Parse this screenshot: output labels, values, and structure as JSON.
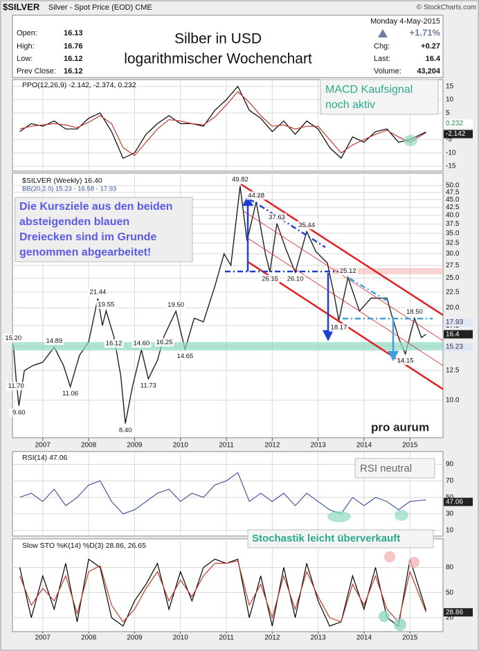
{
  "header": {
    "symbol": "$SILVER",
    "description": "Silver - Spot Price (EOD) CME",
    "copyright": "© StockCharts.com",
    "open_label": "Open:",
    "open": 16.13,
    "high_label": "High:",
    "high": 16.76,
    "low_label": "Low:",
    "low": 16.12,
    "prev_label": "Prev Close:",
    "prev": 16.12,
    "date": "Monday  4-May-2015",
    "change_pct": "+1.71%",
    "chg_label": "Chg:",
    "chg": "+0.27",
    "last_label": "Last:",
    "last": 16.4,
    "volume_label": "Volume:",
    "volume": "43,204",
    "title_line1": "Silber in USD",
    "title_line2": "logarithmischer Wochenchart"
  },
  "annotations": {
    "macd_line1": "MACD Kaufsignal",
    "macd_line2": "noch aktiv",
    "targets": [
      "Die Kursziele aus den beiden",
      "absteigenden blauen",
      "Dreiecken sind im Grunde",
      "genommen abgearbeitet!"
    ],
    "rsi": "RSI neutral",
    "sto": "Stochastik leicht überverkauft",
    "logo": "pro aurum"
  },
  "chart_data": [
    {
      "type": "line",
      "title": "$SILVER (Weekly) 16.40",
      "bollinger_label": "BB(20,2.0) 15.23 - 16.58 - 17.93",
      "bollinger_upper": "17.93",
      "bollinger_lower": "15.23",
      "log_scale": true,
      "grid": true,
      "x": [
        2006.36,
        2006.42,
        2006.48,
        2006.6,
        2006.8,
        2007.0,
        2007.25,
        2007.45,
        2007.6,
        2007.8,
        2008.0,
        2008.2,
        2008.3,
        2008.38,
        2008.55,
        2008.7,
        2008.8,
        2008.95,
        2009.15,
        2009.3,
        2009.5,
        2009.65,
        2009.9,
        2010.1,
        2010.3,
        2010.5,
        2010.75,
        2010.95,
        2011.1,
        2011.3,
        2011.45,
        2011.65,
        2011.85,
        2011.95,
        2012.1,
        2012.3,
        2012.5,
        2012.75,
        2012.95,
        2013.2,
        2013.35,
        2013.45,
        2013.65,
        2013.9,
        2014.15,
        2014.5,
        2014.6,
        2014.75,
        2014.9,
        2015.1,
        2015.25,
        2015.35
      ],
      "series": [
        {
          "color": "#202020",
          "values": [
            15.2,
            11.7,
            9.6,
            12.5,
            13.0,
            13.3,
            14.89,
            13.0,
            11.06,
            14.0,
            15.5,
            21.44,
            17.5,
            19.55,
            16.12,
            12.0,
            8.4,
            11.0,
            14.6,
            11.73,
            13.5,
            16.25,
            19.5,
            14.65,
            18.5,
            18.0,
            23.5,
            30.0,
            27.5,
            49.82,
            33.0,
            44.28,
            30.0,
            26.15,
            37.63,
            31.0,
            26.1,
            35.44,
            30.5,
            28.0,
            22.0,
            18.17,
            25.12,
            19.5,
            21.5,
            21.5,
            19.0,
            16.0,
            14.15,
            18.5,
            16.0,
            16.4
          ],
          "value_labels": [
            "15.20",
            "11.70",
            "9.60",
            null,
            null,
            null,
            "14.89",
            null,
            "11.06",
            null,
            null,
            "21.44",
            null,
            "19.55",
            "16.12",
            null,
            "8.40",
            null,
            "14.60",
            "11.73",
            null,
            "16.25",
            "19.50",
            "14.65",
            null,
            null,
            null,
            null,
            null,
            "49.82",
            null,
            "44.28",
            null,
            "26.15",
            "37.63",
            null,
            "26.10",
            "35.44",
            null,
            null,
            null,
            "18.17",
            "25.12",
            null,
            null,
            null,
            null,
            null,
            "14.15",
            "18.50",
            null,
            null
          ]
        }
      ],
      "xlim": [
        2006.34,
        2015.72
      ],
      "xticks": [
        2007,
        2008,
        2009,
        2010,
        2011,
        2012,
        2013,
        2014,
        2015
      ],
      "ylim": [
        7.55,
        53.5
      ],
      "yticks": [
        {
          "value": 10,
          "label": "10.0"
        },
        {
          "value": 12.5,
          "label": "12.5"
        },
        {
          "value": 15,
          "label": "15.0"
        },
        {
          "value": 17.5,
          "label": "17.5"
        },
        {
          "value": 20,
          "label": "20.0"
        },
        {
          "value": 22.5,
          "label": "22.5"
        },
        {
          "value": 25,
          "label": "25.0"
        },
        {
          "value": 27.5,
          "label": "27.5"
        },
        {
          "value": 30,
          "label": "30.0"
        },
        {
          "value": 32.5,
          "label": "32.5"
        },
        {
          "value": 35,
          "label": "35.0"
        },
        {
          "value": 37.5,
          "label": "37.5"
        },
        {
          "value": 40,
          "label": "40.0"
        },
        {
          "value": 42.5,
          "label": "42.5"
        },
        {
          "value": 45,
          "label": "45.0"
        },
        {
          "value": 47.5,
          "label": "47.5"
        },
        {
          "value": 50,
          "label": "50.0"
        }
      ]
    },
    {
      "type": "line",
      "title": "PPO(12,26,9) -2.142, -2.374, 0.232",
      "histogram": 0.232,
      "grid": true,
      "x": [
        2006.5,
        2006.75,
        2007.0,
        2007.25,
        2007.5,
        2007.75,
        2008.0,
        2008.25,
        2008.5,
        2008.75,
        2009.0,
        2009.25,
        2009.5,
        2009.75,
        2010.0,
        2010.25,
        2010.5,
        2010.75,
        2011.0,
        2011.25,
        2011.5,
        2011.75,
        2012.0,
        2012.25,
        2012.5,
        2012.75,
        2013.0,
        2013.25,
        2013.5,
        2013.75,
        2014.0,
        2014.25,
        2014.5,
        2014.75,
        2015.0,
        2015.35
      ],
      "series": [
        {
          "color": "#000000",
          "values": [
            -2,
            1,
            0,
            2,
            -1,
            -1,
            3,
            5,
            -2,
            -12,
            -10,
            -3,
            1,
            4,
            1,
            1,
            0,
            6,
            10,
            15,
            6,
            3,
            -2,
            2,
            -3,
            2,
            -1,
            -8,
            -12,
            -4,
            -6,
            -2,
            -1,
            -6,
            -5,
            -2.142
          ]
        },
        {
          "color": "#c0392b",
          "values": [
            -1,
            0,
            0.5,
            1,
            0.5,
            -0.5,
            1.5,
            4,
            1,
            -8,
            -11,
            -6,
            -1,
            2.5,
            2,
            1,
            0.5,
            3.5,
            8,
            13,
            9,
            4,
            0,
            0.5,
            -1,
            0,
            0,
            -5,
            -10,
            -7,
            -5,
            -3,
            -1.5,
            -4,
            -6,
            -2.374
          ]
        }
      ],
      "xlim": [
        2006.34,
        2015.72
      ],
      "ylim": [
        -16.3,
        17
      ],
      "yticks": [
        15,
        10,
        5,
        -5,
        -10,
        -15
      ]
    },
    {
      "type": "line",
      "title": "RSI(14) 47.06",
      "grid": true,
      "x": [
        2006.5,
        2006.75,
        2007.0,
        2007.25,
        2007.5,
        2007.75,
        2008.0,
        2008.25,
        2008.5,
        2008.75,
        2009.0,
        2009.25,
        2009.5,
        2009.75,
        2010.0,
        2010.25,
        2010.5,
        2010.75,
        2011.0,
        2011.25,
        2011.5,
        2011.75,
        2012.0,
        2012.25,
        2012.5,
        2012.75,
        2013.0,
        2013.25,
        2013.5,
        2013.75,
        2014.0,
        2014.25,
        2014.5,
        2014.75,
        2015.0,
        2015.35
      ],
      "series": [
        {
          "color": "#4a5a9a",
          "values": [
            50,
            55,
            45,
            60,
            40,
            50,
            65,
            70,
            45,
            30,
            35,
            45,
            55,
            60,
            45,
            55,
            50,
            65,
            70,
            80,
            45,
            55,
            45,
            55,
            40,
            55,
            45,
            35,
            30,
            50,
            40,
            50,
            45,
            35,
            45,
            47.06
          ]
        }
      ],
      "xlim": [
        2006.34,
        2015.72
      ],
      "ylim": [
        4,
        103
      ],
      "yticks": [
        10,
        30,
        50,
        70,
        90
      ]
    },
    {
      "type": "line",
      "title": "Slow STO %K(14) %D(3) 28.86, 26.65",
      "grid": true,
      "x": [
        2006.5,
        2006.75,
        2007.0,
        2007.25,
        2007.5,
        2007.75,
        2008.0,
        2008.25,
        2008.5,
        2008.75,
        2009.0,
        2009.25,
        2009.5,
        2009.75,
        2010.0,
        2010.25,
        2010.5,
        2010.75,
        2011.0,
        2011.25,
        2011.5,
        2011.75,
        2012.0,
        2012.25,
        2012.5,
        2012.75,
        2013.0,
        2013.25,
        2013.5,
        2013.75,
        2014.0,
        2014.25,
        2014.5,
        2014.75,
        2015.0,
        2015.35
      ],
      "series": [
        {
          "color": "#000000",
          "values": [
            80,
            20,
            70,
            30,
            85,
            15,
            90,
            80,
            20,
            10,
            40,
            60,
            85,
            30,
            75,
            40,
            80,
            90,
            85,
            90,
            20,
            70,
            10,
            80,
            20,
            85,
            40,
            10,
            15,
            70,
            30,
            80,
            20,
            10,
            90,
            28.86
          ]
        },
        {
          "color": "#c0392b",
          "values": [
            70,
            35,
            55,
            40,
            70,
            25,
            75,
            82,
            35,
            15,
            30,
            55,
            75,
            40,
            65,
            45,
            70,
            85,
            85,
            88,
            35,
            60,
            20,
            70,
            30,
            75,
            45,
            20,
            15,
            60,
            35,
            70,
            30,
            15,
            75,
            26.65
          ]
        }
      ],
      "xlim": [
        2006.34,
        2015.72
      ],
      "xticks": [
        2007,
        2008,
        2009,
        2010,
        2011,
        2012,
        2013,
        2014,
        2015
      ],
      "ylim": [
        5,
        111
      ],
      "yticks": [
        20,
        50,
        80
      ]
    }
  ]
}
